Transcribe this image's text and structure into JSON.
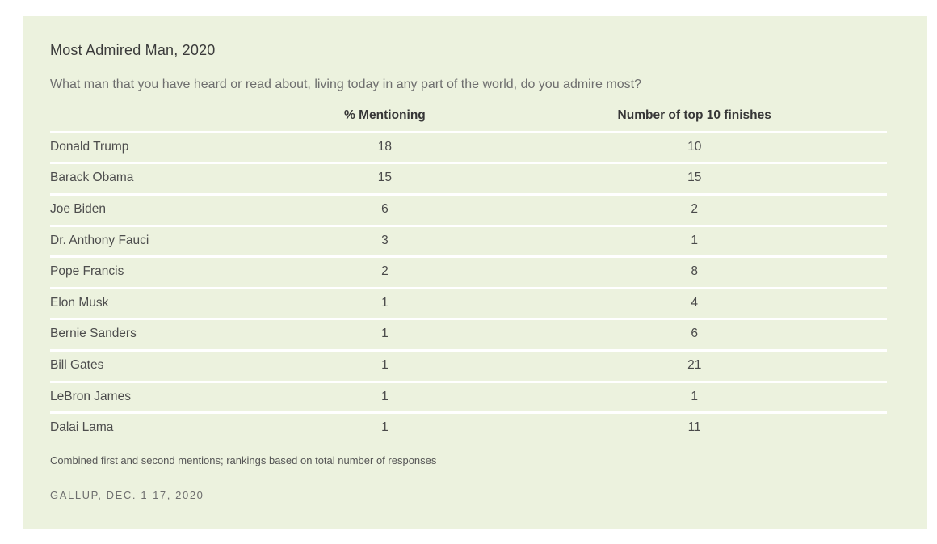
{
  "colors": {
    "page_background": "#ffffff",
    "card_background": "#ecf2de",
    "row_divider": "#ffffff",
    "title_text": "#3b3b3b",
    "subtitle_text": "#6e6e6e",
    "header_text": "#373737",
    "cell_text": "#4a4a4a",
    "source_text": "#6e6e6e"
  },
  "chart_data": {
    "type": "table",
    "title": "Most Admired Man, 2020",
    "subtitle": "What man that you have heard or read about, living today in any part of the world, do you admire most?",
    "columns": [
      "",
      "% Mentioning",
      "Number of top 10 finishes"
    ],
    "rows": [
      {
        "name": "Donald Trump",
        "pct_mentioning": 18,
        "top10_finishes": 10
      },
      {
        "name": "Barack Obama",
        "pct_mentioning": 15,
        "top10_finishes": 15
      },
      {
        "name": "Joe Biden",
        "pct_mentioning": 6,
        "top10_finishes": 2
      },
      {
        "name": "Dr. Anthony Fauci",
        "pct_mentioning": 3,
        "top10_finishes": 1
      },
      {
        "name": "Pope Francis",
        "pct_mentioning": 2,
        "top10_finishes": 8
      },
      {
        "name": "Elon Musk",
        "pct_mentioning": 1,
        "top10_finishes": 4
      },
      {
        "name": "Bernie Sanders",
        "pct_mentioning": 1,
        "top10_finishes": 6
      },
      {
        "name": "Bill Gates",
        "pct_mentioning": 1,
        "top10_finishes": 21
      },
      {
        "name": "LeBron James",
        "pct_mentioning": 1,
        "top10_finishes": 1
      },
      {
        "name": "Dalai Lama",
        "pct_mentioning": 1,
        "top10_finishes": 11
      }
    ],
    "footnote": "Combined first and second mentions; rankings based on total number of responses",
    "source": "GALLUP, DEC. 1-17, 2020",
    "layout": {
      "name_column_align": "left",
      "value_columns_align": "center",
      "grid": "horizontal white dividers between rows, no line under last row"
    }
  }
}
